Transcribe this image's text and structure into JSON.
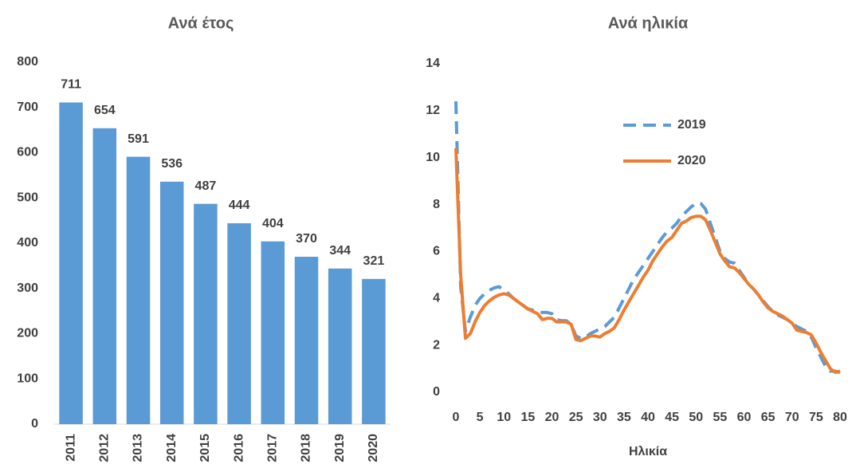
{
  "chart_data": [
    {
      "type": "bar",
      "title": "Ανά έτος",
      "categories": [
        "2011",
        "2012",
        "2013",
        "2014",
        "2015",
        "2016",
        "2017",
        "2018",
        "2019",
        "2020"
      ],
      "values": [
        711,
        654,
        591,
        536,
        487,
        444,
        404,
        370,
        344,
        321
      ],
      "color": "#5b9bd5",
      "ylim": [
        0,
        800
      ],
      "yticks": [
        0,
        100,
        200,
        300,
        400,
        500,
        600,
        700,
        800
      ],
      "grid": false
    },
    {
      "type": "line",
      "title": "Ανά ηλικία",
      "x_label": "Ηλικία",
      "x": [
        0,
        1,
        2,
        3,
        4,
        5,
        6,
        7,
        8,
        9,
        10,
        11,
        12,
        13,
        14,
        15,
        16,
        17,
        18,
        19,
        20,
        21,
        22,
        23,
        24,
        25,
        26,
        27,
        28,
        29,
        30,
        31,
        32,
        33,
        34,
        35,
        36,
        37,
        38,
        39,
        40,
        41,
        42,
        43,
        44,
        45,
        46,
        47,
        48,
        49,
        50,
        51,
        52,
        53,
        54,
        55,
        56,
        57,
        58,
        59,
        60,
        61,
        62,
        63,
        64,
        65,
        66,
        67,
        68,
        69,
        70,
        71,
        72,
        73,
        74,
        75,
        76,
        77,
        78,
        79,
        80
      ],
      "xlim": [
        0,
        80
      ],
      "xticks": [
        0,
        5,
        10,
        15,
        20,
        25,
        30,
        35,
        40,
        45,
        50,
        55,
        60,
        65,
        70,
        75,
        80
      ],
      "ylim": [
        0,
        14
      ],
      "yticks": [
        0,
        2,
        4,
        6,
        8,
        10,
        12,
        14
      ],
      "grid": false,
      "legend_position": "upper right",
      "series": [
        {
          "name": "2019",
          "color": "#5b9bd5",
          "line_style": "dashed",
          "values": [
            12.4,
            4.5,
            2.6,
            3.2,
            3.7,
            4.0,
            4.2,
            4.35,
            4.45,
            4.5,
            4.35,
            4.2,
            4.0,
            3.85,
            3.7,
            3.55,
            3.5,
            3.45,
            3.4,
            3.4,
            3.35,
            3.1,
            3.05,
            3.05,
            2.9,
            2.4,
            2.3,
            2.35,
            2.5,
            2.6,
            2.7,
            2.8,
            3.0,
            3.2,
            3.6,
            4.0,
            4.4,
            4.8,
            5.1,
            5.4,
            5.7,
            6.0,
            6.3,
            6.6,
            6.85,
            7.0,
            7.2,
            7.5,
            7.7,
            7.9,
            8.05,
            8.05,
            7.8,
            7.2,
            6.6,
            6.0,
            5.7,
            5.55,
            5.5,
            5.2,
            4.9,
            4.6,
            4.4,
            4.15,
            3.9,
            3.65,
            3.45,
            3.3,
            3.2,
            3.1,
            2.95,
            2.8,
            2.7,
            2.6,
            2.35,
            1.9,
            1.5,
            1.1,
            0.9,
            0.9,
            0.85
          ]
        },
        {
          "name": "2020",
          "color": "#ed7d31",
          "line_style": "solid",
          "values": [
            10.4,
            5.0,
            2.3,
            2.5,
            3.0,
            3.4,
            3.7,
            3.9,
            4.05,
            4.15,
            4.2,
            4.15,
            4.0,
            3.85,
            3.7,
            3.55,
            3.45,
            3.35,
            3.1,
            3.15,
            3.15,
            3.0,
            3.0,
            3.0,
            2.9,
            2.25,
            2.2,
            2.3,
            2.4,
            2.4,
            2.35,
            2.5,
            2.6,
            2.75,
            3.1,
            3.5,
            3.85,
            4.2,
            4.55,
            4.9,
            5.2,
            5.6,
            5.9,
            6.2,
            6.45,
            6.6,
            6.9,
            7.2,
            7.3,
            7.45,
            7.5,
            7.5,
            7.35,
            6.9,
            6.4,
            5.9,
            5.6,
            5.35,
            5.3,
            5.1,
            4.85,
            4.6,
            4.4,
            4.15,
            3.85,
            3.6,
            3.45,
            3.35,
            3.25,
            3.1,
            2.95,
            2.65,
            2.6,
            2.55,
            2.45,
            2.1,
            1.7,
            1.35,
            1.0,
            0.85,
            0.9
          ]
        }
      ]
    }
  ]
}
